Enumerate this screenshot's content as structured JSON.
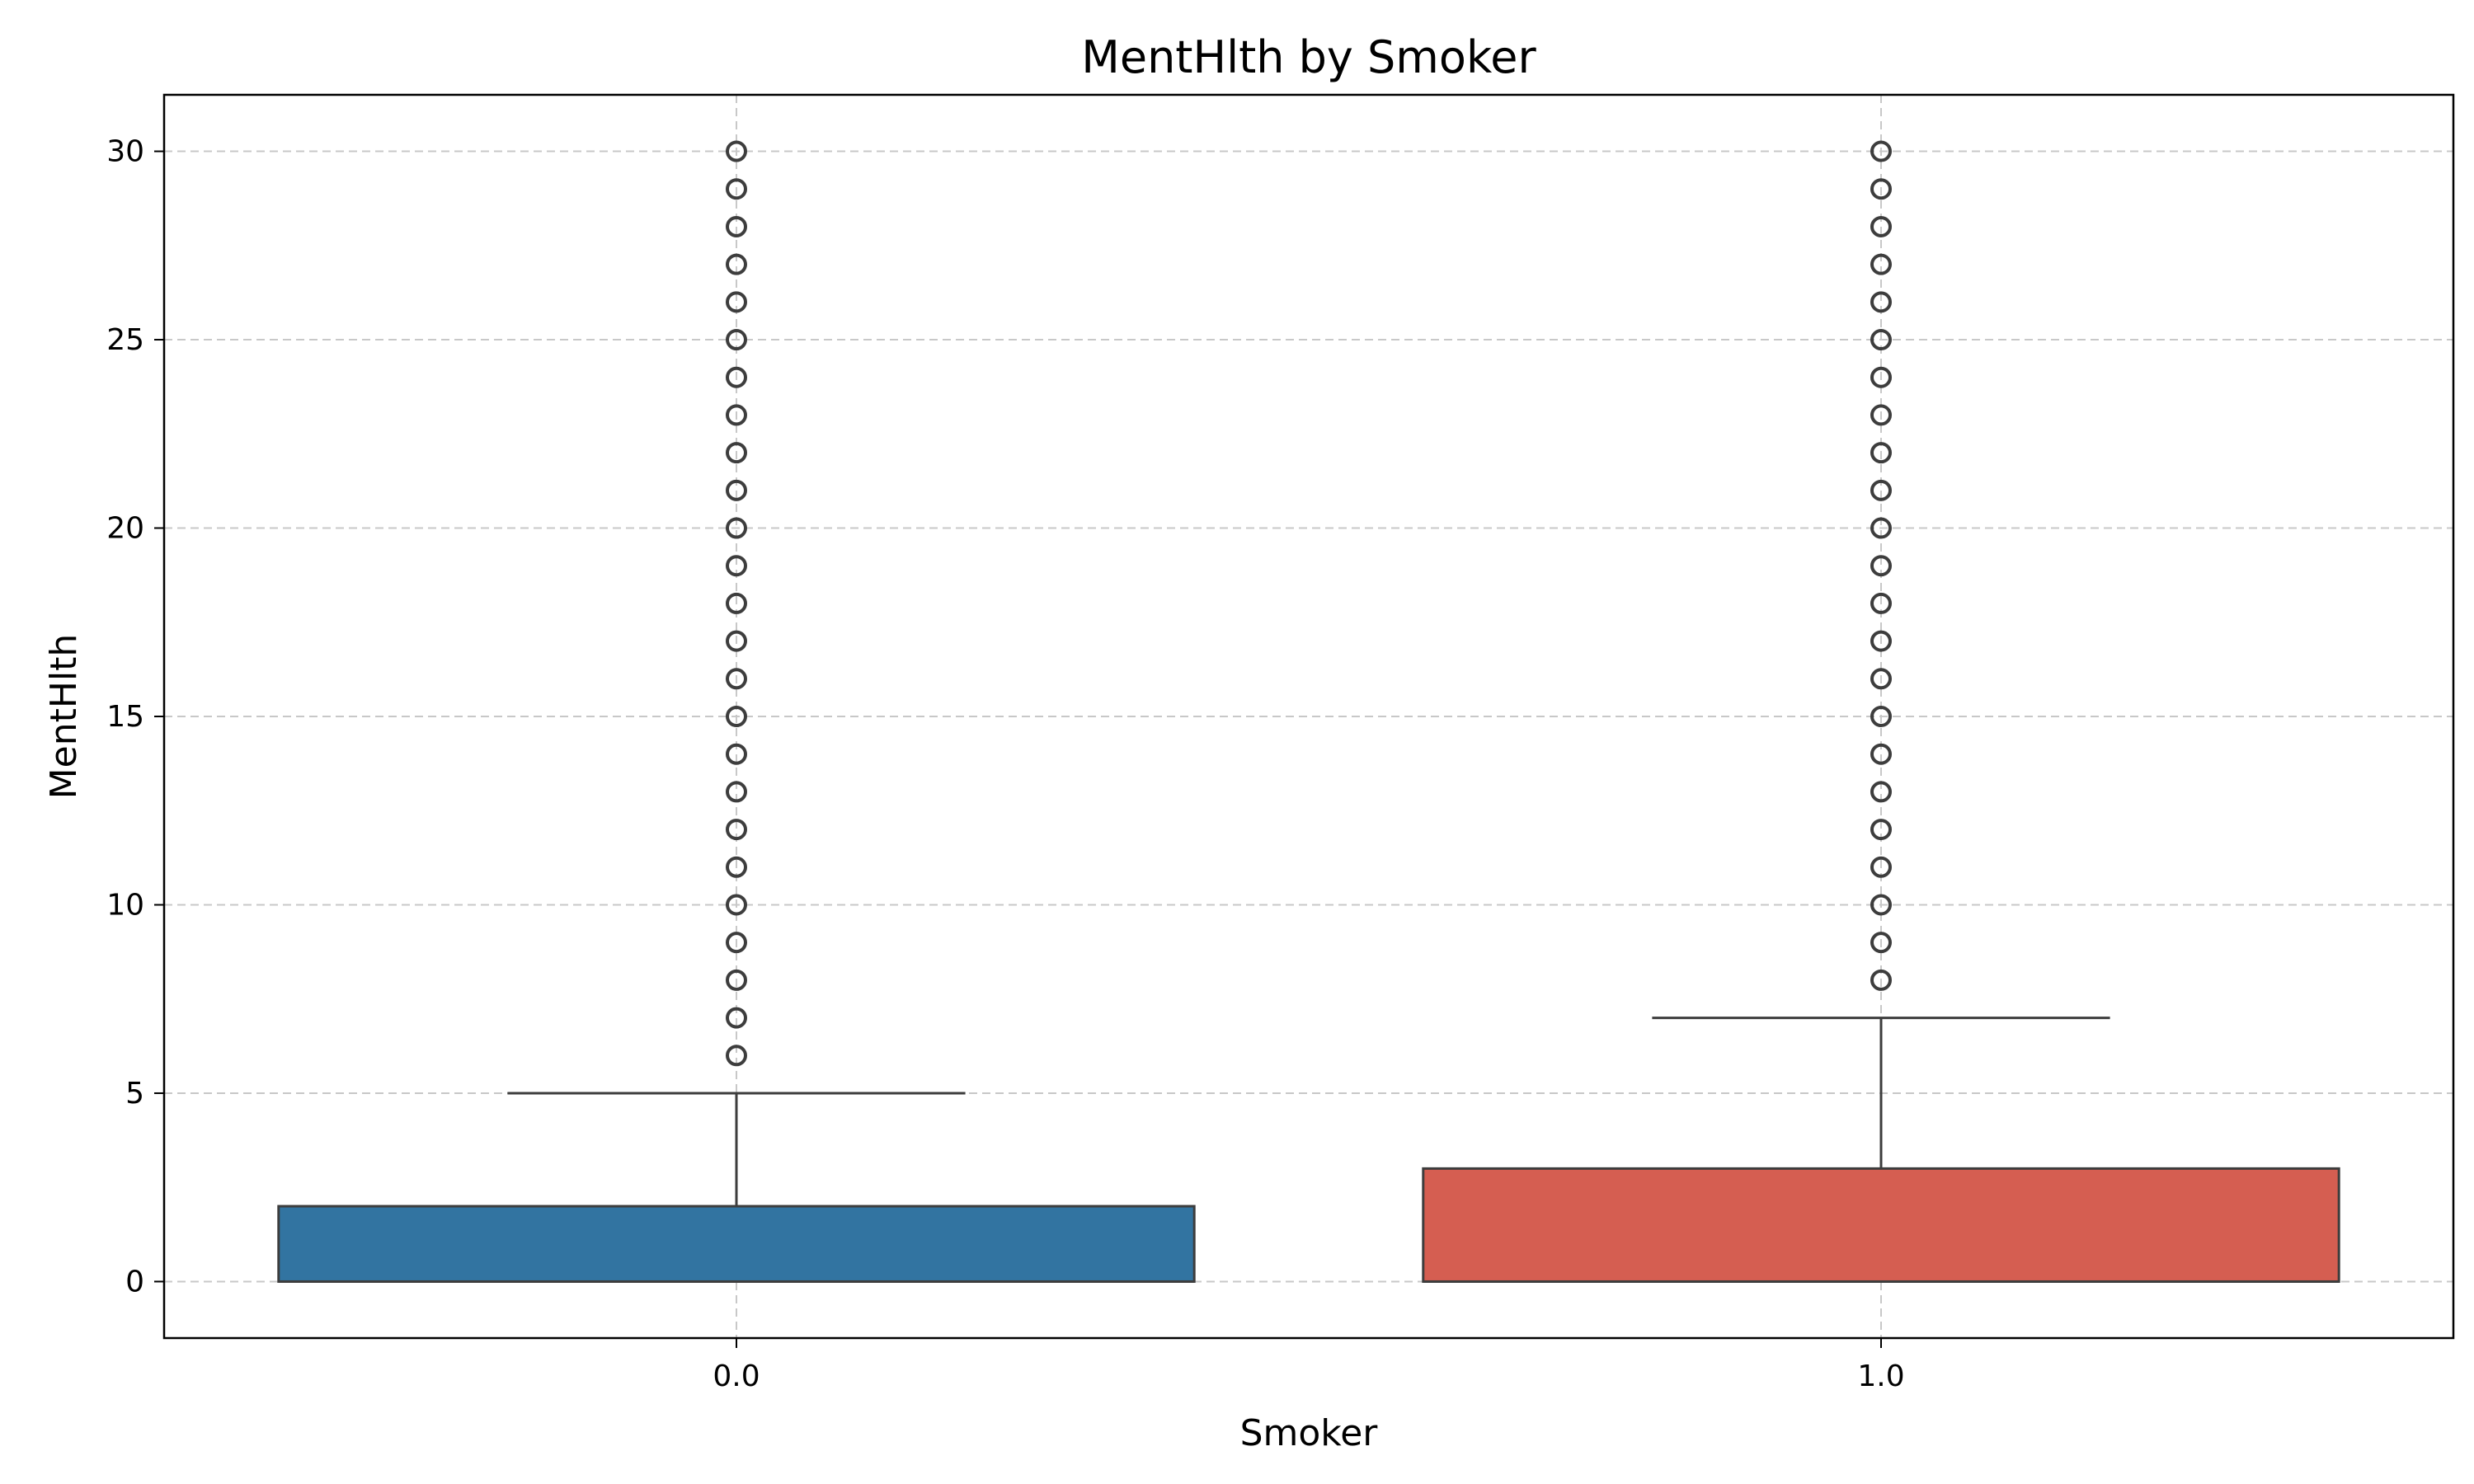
{
  "chart_data": {
    "type": "box",
    "title": "MentHlth by Smoker",
    "xlabel": "Smoker",
    "ylabel": "MentHlth",
    "categories": [
      "0.0",
      "1.0"
    ],
    "ylim": [
      -1.5,
      31.5
    ],
    "yticks": [
      "0",
      "5",
      "10",
      "15",
      "20",
      "25",
      "30"
    ],
    "grid": true,
    "boxes": [
      {
        "category": "0.0",
        "color": "#3274a1",
        "q1": 0,
        "median": 0,
        "q3": 2,
        "whisker_low": 0,
        "whisker_high": 5,
        "outliers": [
          6,
          7,
          8,
          9,
          10,
          11,
          12,
          13,
          14,
          15,
          16,
          17,
          18,
          19,
          20,
          21,
          22,
          23,
          24,
          25,
          26,
          27,
          28,
          29,
          30
        ]
      },
      {
        "category": "1.0",
        "color": "#d55e51",
        "q1": 0,
        "median": 0,
        "q3": 3,
        "whisker_low": 0,
        "whisker_high": 7,
        "outliers": [
          8,
          9,
          10,
          11,
          12,
          13,
          14,
          15,
          16,
          17,
          18,
          19,
          20,
          21,
          22,
          23,
          24,
          25,
          26,
          27,
          28,
          29,
          30
        ]
      }
    ]
  }
}
